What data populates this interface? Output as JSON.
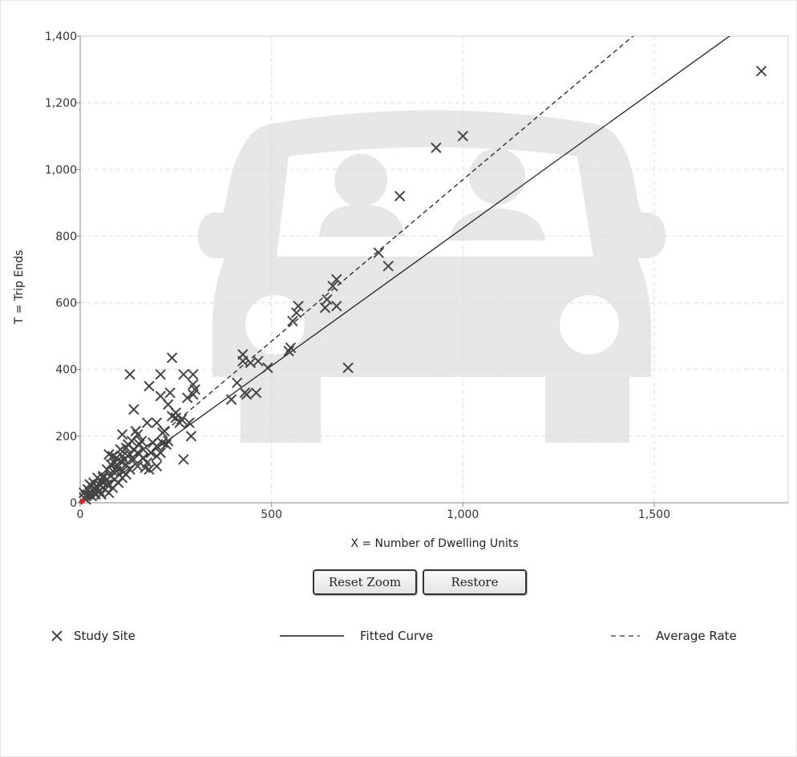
{
  "chart_data": {
    "type": "scatter",
    "xlabel": "X = Number of Dwelling Units",
    "ylabel": "T = Trip Ends",
    "xlim": [
      0,
      1850
    ],
    "ylim": [
      0,
      1400
    ],
    "x_ticks": [
      0,
      500,
      1000,
      1500
    ],
    "x_tick_labels": [
      "0",
      "500",
      "1,000",
      "1,500"
    ],
    "y_ticks": [
      0,
      200,
      400,
      600,
      800,
      1000,
      1200,
      1400
    ],
    "y_tick_labels": [
      "0",
      "200",
      "400",
      "600",
      "800",
      "1,000",
      "1,200",
      "1,400"
    ],
    "grid": true,
    "legend_position": "bottom",
    "series": [
      {
        "name": "Study Site",
        "kind": "scatter",
        "marker": "x",
        "color": "#444444",
        "points": [
          [
            1780,
            1295
          ],
          [
            1000,
            1100
          ],
          [
            930,
            1065
          ],
          [
            835,
            920
          ],
          [
            780,
            750
          ],
          [
            805,
            710
          ],
          [
            670,
            670
          ],
          [
            660,
            650
          ],
          [
            670,
            590
          ],
          [
            640,
            585
          ],
          [
            645,
            610
          ],
          [
            570,
            590
          ],
          [
            565,
            570
          ],
          [
            555,
            545
          ],
          [
            550,
            465
          ],
          [
            545,
            455
          ],
          [
            700,
            405
          ],
          [
            490,
            405
          ],
          [
            465,
            425
          ],
          [
            445,
            420
          ],
          [
            425,
            445
          ],
          [
            425,
            425
          ],
          [
            410,
            360
          ],
          [
            395,
            310
          ],
          [
            430,
            330
          ],
          [
            435,
            325
          ],
          [
            460,
            330
          ],
          [
            295,
            385
          ],
          [
            270,
            385
          ],
          [
            295,
            355
          ],
          [
            295,
            325
          ],
          [
            300,
            340
          ],
          [
            280,
            315
          ],
          [
            240,
            435
          ],
          [
            210,
            385
          ],
          [
            130,
            385
          ],
          [
            180,
            350
          ],
          [
            210,
            320
          ],
          [
            235,
            330
          ],
          [
            230,
            295
          ],
          [
            250,
            270
          ],
          [
            265,
            250
          ],
          [
            285,
            240
          ],
          [
            290,
            200
          ],
          [
            260,
            240
          ],
          [
            270,
            130
          ],
          [
            220,
            215
          ],
          [
            215,
            180
          ],
          [
            225,
            175
          ],
          [
            230,
            185
          ],
          [
            200,
            240
          ],
          [
            175,
            240
          ],
          [
            145,
            215
          ],
          [
            140,
            280
          ],
          [
            110,
            205
          ],
          [
            150,
            205
          ],
          [
            135,
            185
          ],
          [
            120,
            165
          ],
          [
            105,
            160
          ],
          [
            85,
            140
          ],
          [
            75,
            145
          ],
          [
            95,
            135
          ],
          [
            155,
            175
          ],
          [
            165,
            160
          ],
          [
            150,
            150
          ],
          [
            140,
            130
          ],
          [
            120,
            115
          ],
          [
            100,
            110
          ],
          [
            110,
            95
          ],
          [
            130,
            100
          ],
          [
            165,
            135
          ],
          [
            175,
            120
          ],
          [
            170,
            105
          ],
          [
            180,
            100
          ],
          [
            200,
            110
          ],
          [
            200,
            140
          ],
          [
            210,
            150
          ],
          [
            190,
            180
          ],
          [
            160,
            185
          ],
          [
            60,
            80
          ],
          [
            70,
            100
          ],
          [
            80,
            80
          ],
          [
            90,
            70
          ],
          [
            95,
            95
          ],
          [
            100,
            60
          ],
          [
            110,
            75
          ],
          [
            120,
            85
          ],
          [
            60,
            60
          ],
          [
            50,
            55
          ],
          [
            45,
            45
          ],
          [
            40,
            40
          ],
          [
            35,
            35
          ],
          [
            30,
            50
          ],
          [
            25,
            30
          ],
          [
            20,
            25
          ],
          [
            15,
            20
          ],
          [
            10,
            15
          ],
          [
            30,
            20
          ],
          [
            40,
            25
          ],
          [
            50,
            35
          ],
          [
            55,
            25
          ],
          [
            65,
            40
          ],
          [
            70,
            55
          ],
          [
            75,
            30
          ],
          [
            85,
            45
          ],
          [
            20,
            40
          ],
          [
            15,
            10
          ],
          [
            10,
            30
          ],
          [
            25,
            55
          ],
          [
            35,
            60
          ],
          [
            45,
            75
          ],
          [
            80,
            115
          ],
          [
            90,
            120
          ],
          [
            150,
            110
          ],
          [
            185,
            150
          ],
          [
            215,
            210
          ],
          [
            200,
            170
          ],
          [
            240,
            260
          ],
          [
            250,
            255
          ],
          [
            140,
            160
          ],
          [
            125,
            140
          ],
          [
            105,
            125
          ],
          [
            95,
            105
          ],
          [
            85,
            95
          ],
          [
            70,
            70
          ],
          [
            60,
            75
          ],
          [
            55,
            65
          ],
          [
            110,
            140
          ],
          [
            130,
            145
          ],
          [
            125,
            175
          ],
          [
            115,
            130
          ]
        ]
      },
      {
        "name": "Fitted Curve",
        "kind": "line",
        "style": "solid",
        "color": "#222222",
        "points": [
          [
            15,
            10
          ],
          [
            1715,
            1415
          ]
        ]
      },
      {
        "name": "Average Rate",
        "kind": "line",
        "style": "dashed",
        "color": "#222222",
        "points": [
          [
            0,
            0
          ],
          [
            1460,
            1415
          ]
        ]
      }
    ],
    "highlight_point": {
      "x": 5,
      "y": 5,
      "color": "#e02020"
    }
  },
  "controls": {
    "reset_zoom_label": "Reset Zoom",
    "restore_label": "Restore"
  },
  "legend": {
    "study_site": "Study Site",
    "fitted_curve": "Fitted Curve",
    "average_rate": "Average Rate"
  },
  "watermark": {
    "icon": "car-with-passengers-icon",
    "color": "#e6e6e6"
  }
}
